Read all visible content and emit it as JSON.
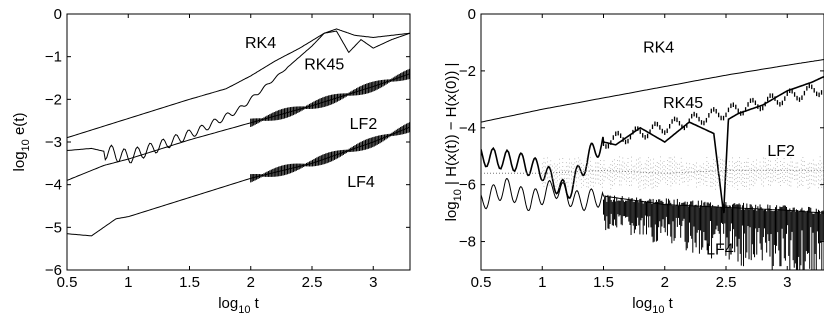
{
  "chart_data": [
    {
      "type": "line",
      "xlabel_base": "log",
      "xlabel_sub": "10",
      "xlabel_rest": " t",
      "ylabel_base": "log",
      "ylabel_sub": "10",
      "ylabel_rest": " e(t)",
      "xlim": [
        0.5,
        3.3
      ],
      "ylim": [
        -6,
        0
      ],
      "xticks": [
        0.5,
        1,
        1.5,
        2,
        2.5,
        3
      ],
      "xtick_labels": [
        "0.5",
        "1",
        "1.5",
        "2",
        "2.5",
        "3"
      ],
      "yticks": [
        0,
        -1,
        -2,
        -3,
        -4,
        -5,
        -6
      ],
      "ytick_labels": [
        "0",
        "−1",
        "−2",
        "−3",
        "−4",
        "−5",
        "−6"
      ],
      "grid": false,
      "series": [
        {
          "name": "RK4",
          "x": [
            0.5,
            1.0,
            1.5,
            1.8,
            2.0,
            2.2,
            2.4,
            2.6,
            2.7,
            2.85,
            3.0,
            3.15,
            3.3
          ],
          "y": [
            -2.9,
            -2.45,
            -2.0,
            -1.75,
            -1.45,
            -1.1,
            -0.8,
            -0.45,
            -0.35,
            -0.5,
            -0.55,
            -0.5,
            -0.45
          ]
        },
        {
          "name": "RK45",
          "x": [
            0.5,
            0.7,
            1.0,
            1.3,
            1.6,
            1.9,
            2.1,
            2.3,
            2.5,
            2.6,
            2.7,
            2.8,
            2.9,
            3.0,
            3.15,
            3.3
          ],
          "y": [
            -3.2,
            -3.15,
            -3.35,
            -3.05,
            -2.7,
            -2.25,
            -1.75,
            -1.25,
            -0.75,
            -0.45,
            -0.4,
            -0.9,
            -0.6,
            -0.8,
            -0.6,
            -0.45
          ]
        },
        {
          "name": "LF2",
          "x": [
            0.5,
            0.8,
            1.0,
            1.5,
            2.0,
            2.5,
            3.0,
            3.3
          ],
          "y": [
            -3.9,
            -3.55,
            -3.4,
            -2.95,
            -2.55,
            -2.15,
            -1.7,
            -1.4
          ]
        },
        {
          "name": "LF4",
          "x": [
            0.5,
            0.7,
            0.9,
            1.0,
            1.5,
            2.0,
            2.5,
            3.0,
            3.3
          ],
          "y": [
            -5.15,
            -5.2,
            -4.8,
            -4.75,
            -4.3,
            -3.85,
            -3.5,
            -3.0,
            -2.65
          ]
        }
      ],
      "annotations": [
        {
          "text": "RK4",
          "x": 2.08,
          "y": -0.8
        },
        {
          "text": "RK45",
          "x": 2.6,
          "y": -1.3
        },
        {
          "text": "LF2",
          "x": 2.92,
          "y": -2.7
        },
        {
          "text": "LF4",
          "x": 2.9,
          "y": -4.05
        }
      ]
    },
    {
      "type": "line",
      "xlabel_base": "log",
      "xlabel_sub": "10",
      "xlabel_rest": " t",
      "ylabel_base": "log",
      "ylabel_sub": "10",
      "ylabel_rest": " | H(x(t)) − H(x(0)) |",
      "xlim": [
        0.5,
        3.3
      ],
      "ylim": [
        -9,
        0
      ],
      "xticks": [
        0.5,
        1,
        1.5,
        2,
        2.5,
        3
      ],
      "xtick_labels": [
        "0.5",
        "1",
        "1.5",
        "2",
        "2.5",
        "3"
      ],
      "yticks": [
        0,
        -2,
        -4,
        -6,
        -8
      ],
      "ytick_labels": [
        "0",
        "−2",
        "−4",
        "−6",
        "−8"
      ],
      "grid": false,
      "series": [
        {
          "name": "RK4",
          "x": [
            0.5,
            1.0,
            1.5,
            2.0,
            2.5,
            3.0,
            3.3
          ],
          "y": [
            -3.8,
            -3.35,
            -2.95,
            -2.55,
            -2.15,
            -1.8,
            -1.6
          ]
        },
        {
          "name": "RK45",
          "x": [
            0.5,
            0.8,
            1.0,
            1.2,
            1.4,
            1.5,
            1.6,
            1.8,
            2.0,
            2.2,
            2.4,
            2.48,
            2.52,
            2.6,
            2.8,
            3.0,
            3.2,
            3.3
          ],
          "y": [
            -5.0,
            -5.2,
            -5.5,
            -6.3,
            -4.9,
            -4.5,
            -4.6,
            -4.0,
            -4.5,
            -3.8,
            -4.2,
            -7.0,
            -3.7,
            -3.5,
            -3.2,
            -2.7,
            -2.4,
            -2.2
          ]
        },
        {
          "name": "LF2",
          "x": [
            0.5,
            1.0,
            1.5,
            2.0,
            2.5,
            3.0,
            3.3
          ],
          "y": [
            -5.6,
            -5.6,
            -5.5,
            -5.6,
            -5.5,
            -5.5,
            -5.5
          ]
        },
        {
          "name": "LF4",
          "x": [
            0.5,
            0.7,
            0.9,
            1.1,
            1.3,
            1.5,
            2.0,
            2.5,
            3.0,
            3.3
          ],
          "y": [
            -6.6,
            -6.1,
            -6.6,
            -6.1,
            -6.6,
            -6.4,
            -6.7,
            -6.8,
            -6.9,
            -7.0
          ]
        }
      ],
      "annotations": [
        {
          "text": "RK4",
          "x": 1.95,
          "y": -1.35
        },
        {
          "text": "RK45",
          "x": 2.15,
          "y": -3.3
        },
        {
          "text": "LF2",
          "x": 2.95,
          "y": -5.0
        },
        {
          "text": "LF4",
          "x": 2.45,
          "y": -8.45
        }
      ]
    }
  ]
}
